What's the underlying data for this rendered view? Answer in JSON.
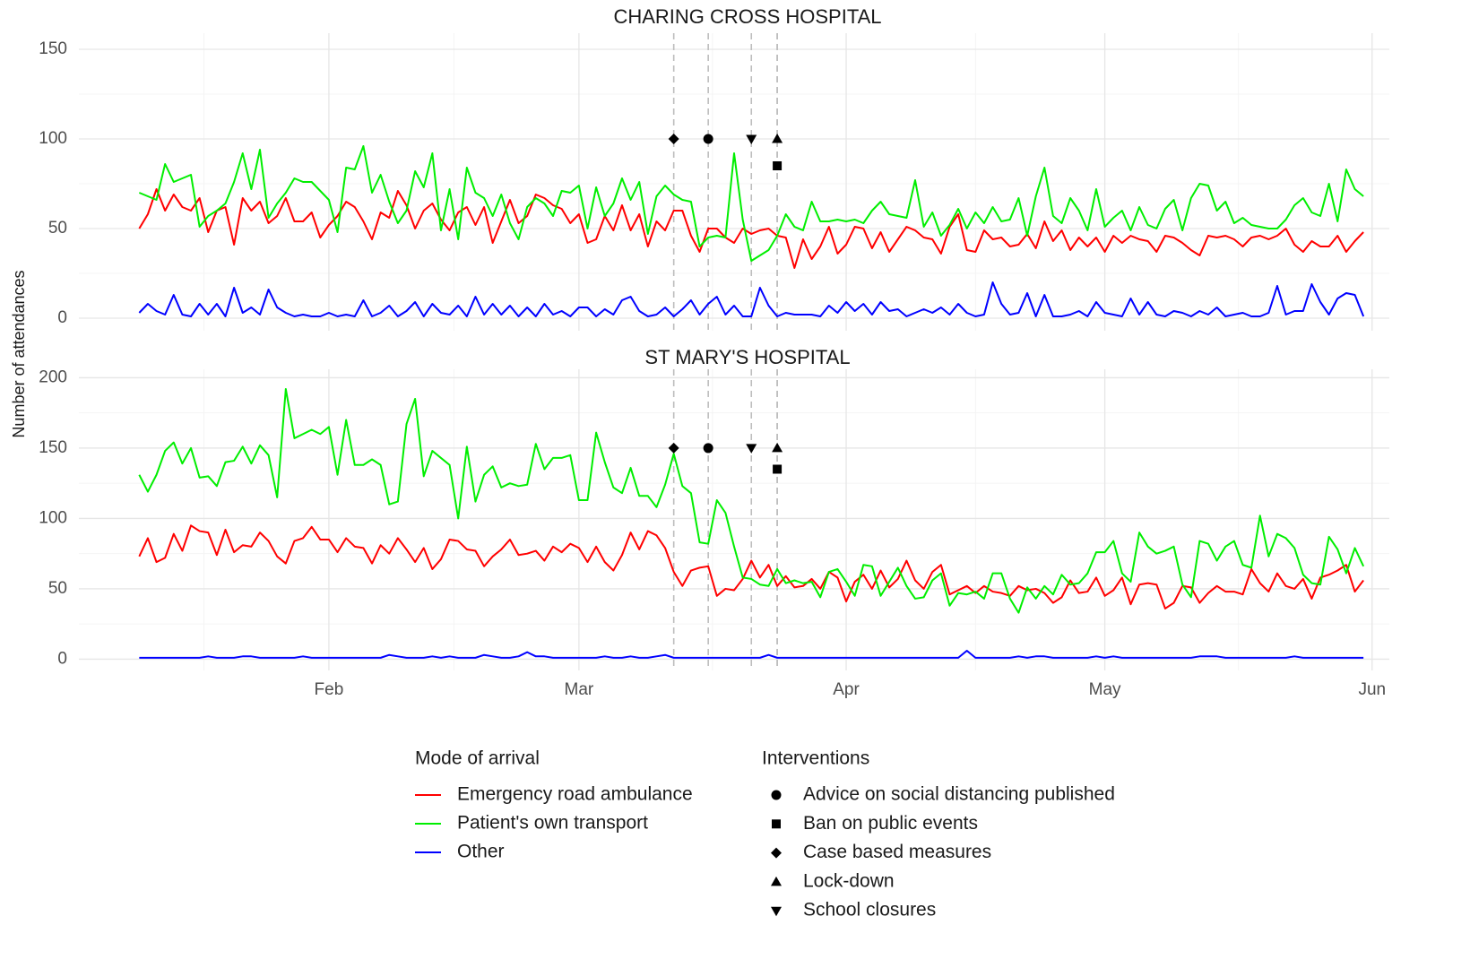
{
  "chart_data": {
    "type": "line",
    "ylabel": "Number of attendances",
    "x": [
      10,
      11,
      12,
      13,
      14,
      15,
      16,
      17,
      18,
      19,
      20,
      21,
      22,
      23,
      24,
      25,
      26,
      27,
      28,
      29,
      30,
      31,
      32,
      33,
      34,
      35,
      36,
      37,
      38,
      39,
      40,
      41,
      42,
      43,
      44,
      45,
      46,
      47,
      48,
      49,
      50,
      51,
      52,
      53,
      54,
      55,
      56,
      57,
      58,
      59,
      60,
      61,
      62,
      63,
      64,
      65,
      66,
      67,
      68,
      69,
      70,
      71,
      72,
      73,
      74,
      75,
      76,
      77,
      78,
      79,
      80,
      81,
      82,
      83,
      84,
      85,
      86,
      87,
      88,
      89,
      90,
      91,
      92,
      93,
      94,
      95,
      96,
      97,
      98,
      99,
      100,
      101,
      102,
      103,
      104,
      105,
      106,
      107,
      108,
      109,
      110,
      111,
      112,
      113,
      114,
      115,
      116,
      117,
      118,
      119,
      120,
      121,
      122,
      123,
      124,
      125,
      126,
      127,
      128,
      129,
      130,
      131,
      132,
      133,
      134,
      135,
      136,
      137,
      138,
      139,
      140,
      141,
      142,
      143,
      144,
      145,
      146,
      147,
      148,
      149,
      150,
      151,
      152
    ],
    "xlim": [
      3,
      155
    ],
    "xticks": [
      {
        "value": 32,
        "label": "Feb"
      },
      {
        "value": 61,
        "label": "Mar"
      },
      {
        "value": 92,
        "label": "Apr"
      },
      {
        "value": 122,
        "label": "May"
      },
      {
        "value": 153,
        "label": "Jun"
      }
    ],
    "grid": true,
    "legend_title": "Mode of arrival",
    "series": [
      {
        "name": "Emergency road ambulance",
        "color": "#ff0000"
      },
      {
        "name": "Patient's own transport",
        "color": "#00ee00"
      },
      {
        "name": "Other",
        "color": "#0000ff"
      }
    ],
    "interventions_title": "Interventions",
    "interventions": [
      {
        "name": "Advice on social distancing published",
        "shape": "circle",
        "x": 76
      },
      {
        "name": "Ban on public events",
        "shape": "square",
        "x": 84
      },
      {
        "name": "Case based measures",
        "shape": "diamond",
        "x": 72
      },
      {
        "name": "Lock-down",
        "shape": "triangle",
        "x": 84
      },
      {
        "name": "School closures",
        "shape": "triangle-down",
        "x": 81
      }
    ],
    "panels": [
      {
        "title": "CHARING CROSS HOSPITAL",
        "ylim": [
          -7,
          159
        ],
        "yticks": [
          0,
          50,
          100,
          150
        ],
        "intervention_y": [
          100,
          85,
          100,
          100,
          100
        ],
        "values": [
          [
            50,
            58,
            72,
            60,
            69,
            62,
            60,
            67,
            48,
            60,
            62,
            41,
            67,
            60,
            65,
            53,
            57,
            67,
            54,
            54,
            59,
            45,
            52,
            57,
            65,
            62,
            54,
            44,
            59,
            56,
            71,
            63,
            50,
            60,
            64,
            55,
            49,
            59,
            62,
            52,
            62,
            42,
            54,
            66,
            53,
            57,
            69,
            67,
            63,
            61,
            53,
            58,
            42,
            44,
            57,
            49,
            63,
            49,
            58,
            40,
            54,
            49,
            60,
            60,
            46,
            37,
            50,
            50,
            45,
            42,
            50,
            47,
            49,
            50,
            46,
            45,
            28,
            44,
            33,
            40,
            51,
            36,
            41,
            51,
            50,
            39,
            48,
            37,
            44,
            51,
            49,
            45,
            44,
            36,
            51,
            58,
            38,
            37,
            49,
            44,
            45,
            40,
            41,
            47,
            39,
            54,
            43,
            49,
            38,
            45,
            40,
            45,
            37,
            46,
            42,
            46,
            44,
            43,
            37,
            46,
            45,
            42,
            38,
            35,
            46,
            45,
            46,
            44,
            40,
            45,
            46,
            44,
            46,
            50,
            41,
            37,
            43,
            40,
            40,
            46,
            37,
            43,
            48
          ],
          [
            70,
            68,
            66,
            86,
            76,
            78,
            80,
            51,
            57,
            60,
            64,
            76,
            92,
            72,
            94,
            56,
            64,
            70,
            78,
            76,
            76,
            71,
            66,
            48,
            84,
            83,
            96,
            70,
            80,
            65,
            53,
            60,
            82,
            73,
            92,
            49,
            72,
            44,
            84,
            70,
            67,
            57,
            69,
            53,
            44,
            62,
            67,
            64,
            57,
            71,
            70,
            74,
            50,
            73,
            57,
            64,
            78,
            66,
            76,
            47,
            68,
            74,
            69,
            66,
            65,
            40,
            45,
            46,
            45,
            92,
            55,
            32,
            35,
            38,
            46,
            58,
            51,
            49,
            65,
            54,
            54,
            55,
            54,
            55,
            53,
            60,
            65,
            58,
            57,
            56,
            77,
            51,
            59,
            46,
            52,
            61,
            50,
            59,
            53,
            62,
            54,
            55,
            67,
            46,
            68,
            84,
            57,
            53,
            67,
            60,
            49,
            72,
            51,
            56,
            60,
            49,
            62,
            52,
            50,
            61,
            66,
            49,
            67,
            75,
            74,
            60,
            65,
            53,
            56,
            52,
            51,
            50,
            50,
            55,
            63,
            67,
            59,
            57,
            75,
            54,
            83,
            72,
            68
          ],
          [
            3,
            8,
            4,
            2,
            13,
            2,
            1,
            8,
            2,
            8,
            1,
            17,
            3,
            6,
            2,
            16,
            6,
            3,
            1,
            2,
            1,
            1,
            3,
            1,
            2,
            1,
            10,
            1,
            3,
            7,
            1,
            4,
            9,
            1,
            8,
            3,
            2,
            7,
            1,
            12,
            2,
            8,
            2,
            7,
            1,
            6,
            1,
            8,
            2,
            4,
            1,
            6,
            6,
            1,
            5,
            2,
            10,
            12,
            4,
            1,
            2,
            6,
            1,
            5,
            10,
            2,
            8,
            12,
            2,
            7,
            1,
            1,
            17,
            7,
            1,
            3,
            2,
            2,
            2,
            1,
            7,
            3,
            9,
            4,
            8,
            2,
            9,
            4,
            5,
            1,
            3,
            5,
            3,
            6,
            2,
            8,
            3,
            1,
            2,
            20,
            8,
            2,
            3,
            14,
            1,
            13,
            1,
            1,
            2,
            4,
            1,
            9,
            3,
            2,
            1,
            11,
            2,
            9,
            2,
            1,
            4,
            3,
            1,
            4,
            2,
            6,
            1,
            2,
            3,
            1,
            1,
            3,
            18,
            2,
            4,
            4,
            19,
            9,
            2,
            11,
            14,
            13,
            1
          ]
        ]
      },
      {
        "title": "ST MARY'S HOSPITAL",
        "ylim": [
          -8,
          206
        ],
        "yticks": [
          0,
          50,
          100,
          150,
          200
        ],
        "intervention_y": [
          150,
          135,
          150,
          150,
          150
        ],
        "values": [
          [
            73,
            86,
            69,
            72,
            89,
            77,
            95,
            91,
            90,
            74,
            92,
            76,
            81,
            80,
            90,
            84,
            73,
            68,
            84,
            86,
            94,
            85,
            85,
            76,
            86,
            80,
            79,
            68,
            81,
            75,
            86,
            78,
            69,
            79,
            64,
            71,
            85,
            84,
            78,
            77,
            66,
            73,
            78,
            85,
            74,
            75,
            77,
            70,
            80,
            76,
            82,
            79,
            69,
            80,
            69,
            63,
            74,
            90,
            78,
            91,
            88,
            79,
            62,
            52,
            63,
            65,
            66,
            45,
            50,
            49,
            57,
            70,
            58,
            67,
            52,
            59,
            51,
            52,
            57,
            50,
            62,
            58,
            41,
            55,
            60,
            50,
            63,
            51,
            57,
            70,
            56,
            50,
            62,
            67,
            46,
            49,
            52,
            47,
            52,
            48,
            47,
            45,
            52,
            49,
            50,
            47,
            40,
            44,
            56,
            47,
            48,
            58,
            45,
            49,
            58,
            39,
            53,
            54,
            53,
            36,
            40,
            52,
            51,
            40,
            47,
            52,
            48,
            48,
            46,
            64,
            54,
            48,
            61,
            52,
            50,
            57,
            43,
            58,
            60,
            63,
            67,
            48,
            56
          ],
          [
            131,
            119,
            131,
            148,
            154,
            139,
            150,
            129,
            130,
            123,
            140,
            141,
            151,
            139,
            152,
            145,
            115,
            192,
            157,
            160,
            163,
            160,
            165,
            131,
            170,
            138,
            138,
            142,
            138,
            110,
            112,
            167,
            185,
            130,
            148,
            143,
            138,
            100,
            151,
            112,
            131,
            137,
            122,
            125,
            123,
            124,
            153,
            135,
            143,
            143,
            145,
            113,
            113,
            161,
            140,
            122,
            118,
            136,
            116,
            116,
            108,
            124,
            146,
            123,
            118,
            83,
            82,
            113,
            104,
            80,
            58,
            57,
            53,
            52,
            64,
            54,
            56,
            54,
            55,
            44,
            62,
            64,
            55,
            45,
            67,
            66,
            45,
            55,
            65,
            52,
            43,
            44,
            56,
            61,
            38,
            47,
            46,
            48,
            43,
            61,
            61,
            43,
            33,
            51,
            43,
            52,
            46,
            60,
            53,
            54,
            61,
            76,
            76,
            84,
            61,
            55,
            90,
            80,
            75,
            77,
            80,
            53,
            44,
            84,
            82,
            70,
            80,
            84,
            67,
            65,
            102,
            73,
            89,
            86,
            79,
            60,
            54,
            53,
            87,
            78,
            61,
            79,
            66
          ],
          [
            1,
            1,
            1,
            1,
            1,
            1,
            1,
            1,
            2,
            1,
            1,
            1,
            2,
            2,
            1,
            1,
            1,
            1,
            1,
            2,
            1,
            1,
            1,
            1,
            1,
            1,
            1,
            1,
            1,
            3,
            2,
            1,
            1,
            1,
            2,
            1,
            2,
            1,
            1,
            1,
            3,
            2,
            1,
            1,
            2,
            5,
            2,
            2,
            1,
            1,
            1,
            1,
            1,
            1,
            2,
            1,
            1,
            2,
            1,
            1,
            2,
            3,
            1,
            1,
            1,
            1,
            1,
            1,
            1,
            1,
            1,
            1,
            1,
            3,
            1,
            1,
            1,
            1,
            1,
            1,
            1,
            1,
            1,
            1,
            1,
            1,
            1,
            1,
            1,
            1,
            1,
            1,
            1,
            1,
            1,
            1,
            6,
            1,
            1,
            1,
            1,
            1,
            2,
            1,
            2,
            2,
            1,
            1,
            1,
            1,
            1,
            2,
            1,
            2,
            1,
            1,
            1,
            1,
            1,
            1,
            1,
            1,
            1,
            2,
            2,
            2,
            1,
            1,
            1,
            1,
            1,
            1,
            1,
            1,
            2,
            1,
            1,
            1,
            1,
            1,
            1,
            1,
            1
          ]
        ]
      }
    ]
  }
}
